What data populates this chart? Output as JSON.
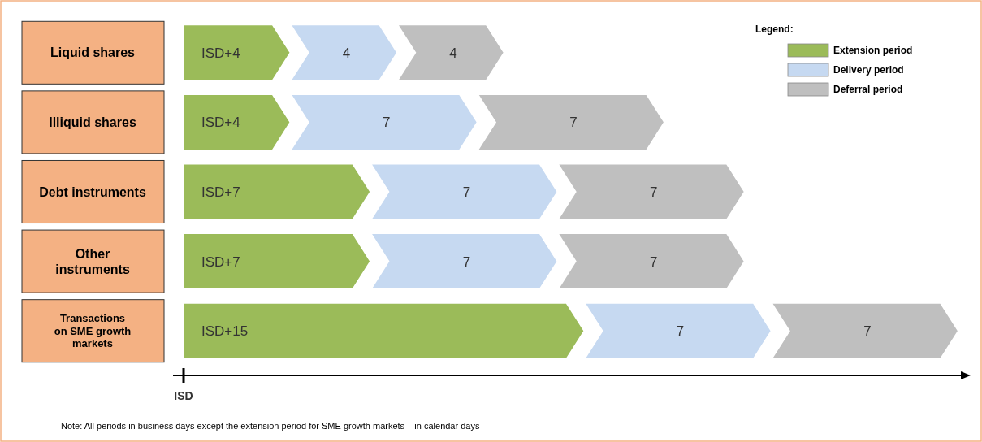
{
  "chart_data": {
    "type": "bar",
    "orientation": "horizontal",
    "stacked": true,
    "categories": [
      "Liquid shares",
      "Illiquid shares",
      "Debt instruments",
      "Other instruments",
      "Transactions on SME growth markets"
    ],
    "series": [
      {
        "name": "Extension period",
        "color": "#9bbb59",
        "values": [
          4,
          4,
          7,
          7,
          15
        ],
        "value_labels": [
          "ISD+4",
          "ISD+4",
          "ISD+7",
          "ISD+7",
          "ISD+15"
        ]
      },
      {
        "name": "Delivery period",
        "color": "#c6d9f1",
        "values": [
          4,
          7,
          7,
          7,
          7
        ],
        "value_labels": [
          "4",
          "7",
          "7",
          "7",
          "7"
        ]
      },
      {
        "name": "Deferral period",
        "color": "#bfbfbf",
        "values": [
          4,
          7,
          7,
          7,
          7
        ],
        "value_labels": [
          "4",
          "7",
          "7",
          "7",
          "7"
        ]
      }
    ],
    "legend": "top right",
    "legend_title": "Legend:",
    "ref_lines": [
      {
        "axis": "x",
        "value": 0,
        "label": "ISD"
      }
    ],
    "annotations": [
      "Note: All periods in business days except the extension period for SME growth markets – in calendar days"
    ]
  }
}
